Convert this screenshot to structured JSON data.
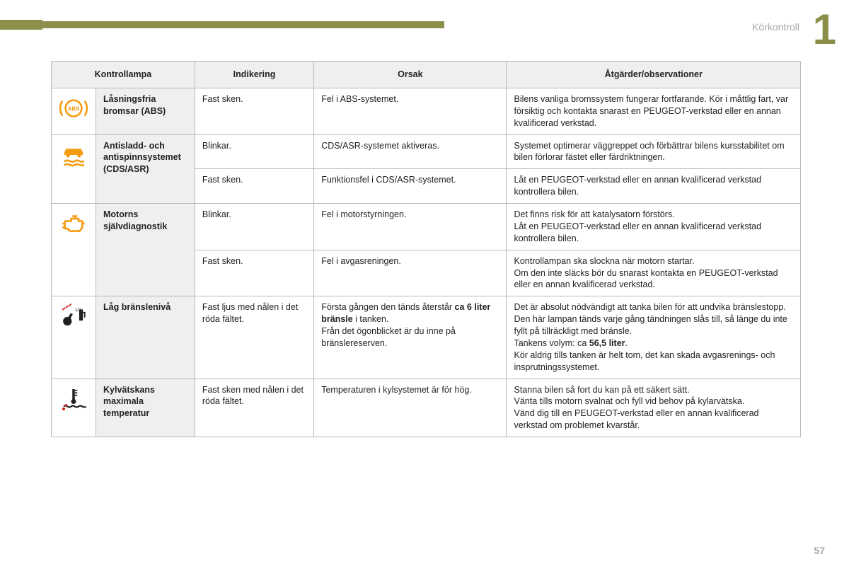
{
  "page": {
    "section_label": "Körkontroll",
    "chapter_number": "1",
    "page_number": "57"
  },
  "colors": {
    "accent": "#8b8f4a",
    "icon_amber": "#f39c12",
    "icon_red": "#d12b1f",
    "header_bg": "#efefef",
    "border": "#b9b9b9",
    "text": "#231f20",
    "muted": "#a8a8a8"
  },
  "table": {
    "headers": {
      "lamp": "Kontrollampa",
      "indication": "Indikering",
      "cause": "Orsak",
      "action": "Åtgärder/observationer"
    },
    "rows": [
      {
        "icon": "abs-icon",
        "name": "Låsningsfria bromsar (ABS)",
        "entries": [
          {
            "indication": "Fast sken.",
            "cause": "Fel i ABS-systemet.",
            "action": "Bilens vanliga bromssystem fungerar fortfarande. Kör i måttlig fart, var försiktig och kontakta snarast en PEUGEOT-verkstad eller en annan kvalificerad verkstad."
          }
        ]
      },
      {
        "icon": "esc-icon",
        "name": "Antisladd- och antispinnsystemet (CDS/ASR)",
        "entries": [
          {
            "indication": "Blinkar.",
            "cause": "CDS/ASR-systemet aktiveras.",
            "action": "Systemet optimerar väggreppet och förbättrar bilens kursstabilitet om bilen förlorar fästet eller färdriktningen."
          },
          {
            "indication": "Fast sken.",
            "cause": "Funktionsfel i CDS/ASR-systemet.",
            "action": "Låt en PEUGEOT-verkstad eller en annan kvalificerad verkstad kontrollera bilen."
          }
        ]
      },
      {
        "icon": "engine-icon",
        "name": "Motorns självdiagnostik",
        "entries": [
          {
            "indication": "Blinkar.",
            "cause": "Fel i motorstyrningen.",
            "action": "Det finns risk för att katalysatorn förstörs.\nLåt en PEUGEOT-verkstad eller en annan kvalificerad verkstad kontrollera bilen."
          },
          {
            "indication": "Fast sken.",
            "cause": "Fel i avgasreningen.",
            "action": "Kontrollampan ska slockna när motorn startar.\nOm den inte släcks bör du snarast kontakta en PEUGEOT-verkstad eller en annan kvalificerad verkstad."
          }
        ]
      },
      {
        "icon": "fuel-icon",
        "name": "Låg bränslenivå",
        "entries": [
          {
            "indication": "Fast ljus med nålen i det röda fältet.",
            "cause_pre": "Första gången den tänds återstår ",
            "cause_bold": "ca 6 liter bränsle",
            "cause_post": " i tanken.\nFrån det ögonblicket är du inne på bränslereserven.",
            "action_pre": "Det är absolut nödvändigt att tanka bilen för att undvika bränslestopp.\nDen här lampan tänds varje gång tändningen slås till, så länge du inte fyllt på tillräckligt med bränsle.\nTankens volym: ca ",
            "action_bold": "56,5 liter",
            "action_post": ".\nKör aldrig tills tanken är helt tom, det kan skada avgasrenings- och insprutningssystemet."
          }
        ]
      },
      {
        "icon": "coolant-icon",
        "name": "Kylvätskans maximala temperatur",
        "entries": [
          {
            "indication": "Fast sken med nålen i det röda fältet.",
            "cause": "Temperaturen i kylsystemet är för hög.",
            "action": "Stanna bilen så fort du kan på ett säkert sätt.\nVänta tills motorn svalnat och fyll vid behov på kylarvätska.\nVänd dig till en PEUGEOT-verkstad eller en annan kvalificerad verkstad om problemet kvarstår."
          }
        ]
      }
    ]
  }
}
